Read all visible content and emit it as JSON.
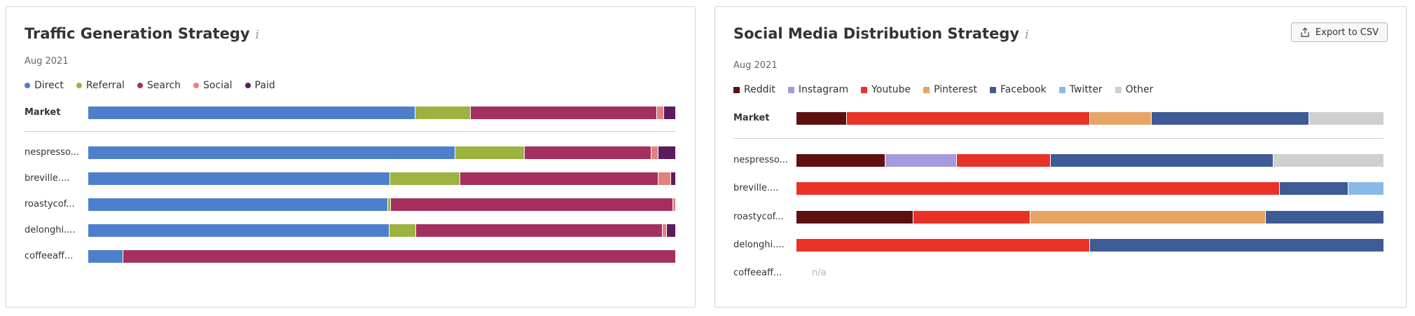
{
  "traffic": {
    "title": "Traffic Generation Strategy",
    "info_icon": "i",
    "date": "Aug 2021",
    "chart_data": {
      "type": "bar",
      "stacked": true,
      "orientation": "horizontal",
      "title": "Traffic Generation Strategy",
      "legend": [
        {
          "name": "Direct",
          "color": "#4e7fcc"
        },
        {
          "name": "Referral",
          "color": "#9db33f"
        },
        {
          "name": "Search",
          "color": "#a5305f"
        },
        {
          "name": "Social",
          "color": "#e48080"
        },
        {
          "name": "Paid",
          "color": "#5c1a5f"
        }
      ],
      "categories": [
        "Market",
        "nespresso...",
        "breville....",
        "roastycof...",
        "delonghi....",
        "coffeeaff..."
      ],
      "series": [
        {
          "name": "Direct",
          "values": [
            55.7,
            62.5,
            51.4,
            51.1,
            51.3,
            6.0
          ]
        },
        {
          "name": "Referral",
          "values": [
            9.4,
            11.8,
            12.0,
            0.5,
            4.5,
            0.0
          ]
        },
        {
          "name": "Search",
          "values": [
            31.7,
            21.6,
            33.7,
            48.0,
            42.1,
            94.0
          ]
        },
        {
          "name": "Social",
          "values": [
            1.2,
            1.2,
            2.2,
            0.4,
            0.7,
            0.0
          ]
        },
        {
          "name": "Paid",
          "values": [
            1.9,
            2.9,
            0.7,
            0.0,
            1.4,
            0.0
          ]
        }
      ]
    }
  },
  "social": {
    "title": "Social Media Distribution Strategy",
    "info_icon": "i",
    "date": "Aug 2021",
    "export_label": "Export to CSV",
    "na_label": "n/a",
    "chart_data": {
      "type": "bar",
      "stacked": true,
      "orientation": "horizontal",
      "title": "Social Media Distribution Strategy",
      "legend": [
        {
          "name": "Reddit",
          "color": "#5e1010"
        },
        {
          "name": "Instagram",
          "color": "#a799dd"
        },
        {
          "name": "Youtube",
          "color": "#e83228"
        },
        {
          "name": "Pinterest",
          "color": "#e8a465"
        },
        {
          "name": "Facebook",
          "color": "#3f5b96"
        },
        {
          "name": "Twitter",
          "color": "#8ab9e8"
        },
        {
          "name": "Other",
          "color": "#cfcfcf"
        }
      ],
      "categories": [
        "Market",
        "nespresso...",
        "breville....",
        "roastycof...",
        "delonghi....",
        "coffeeaff..."
      ],
      "series": [
        {
          "name": "Reddit",
          "values": [
            8.6,
            15.1,
            0.0,
            19.9,
            0.0,
            null
          ]
        },
        {
          "name": "Instagram",
          "values": [
            0.0,
            12.2,
            0.0,
            0.0,
            0.0,
            null
          ]
        },
        {
          "name": "Youtube",
          "values": [
            41.4,
            16.0,
            82.3,
            20.0,
            50.0,
            null
          ]
        },
        {
          "name": "Pinterest",
          "values": [
            10.5,
            0.0,
            0.0,
            40.1,
            0.0,
            null
          ]
        },
        {
          "name": "Facebook",
          "values": [
            26.8,
            38.0,
            11.7,
            20.0,
            50.0,
            null
          ]
        },
        {
          "name": "Twitter",
          "values": [
            0.0,
            0.0,
            6.0,
            0.0,
            0.0,
            null
          ]
        },
        {
          "name": "Other",
          "values": [
            12.7,
            18.7,
            0.0,
            0.0,
            0.0,
            null
          ]
        }
      ]
    }
  }
}
